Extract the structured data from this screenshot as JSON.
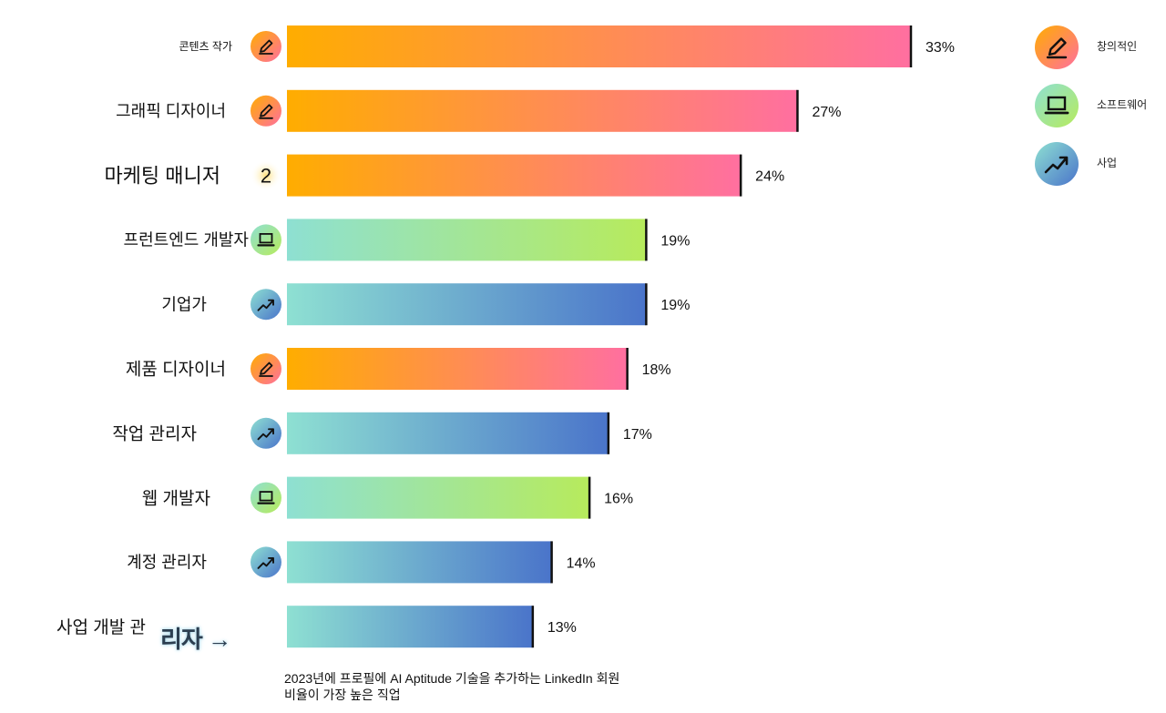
{
  "chart_data": {
    "type": "bar",
    "orientation": "horizontal",
    "title": "",
    "xlabel": "",
    "ylabel": "",
    "xlim": [
      0,
      33
    ],
    "categories": [
      "콘텐츠 작가",
      "그래픽 디자이너",
      "마케팅 매니저",
      "프런트엔드 개발자",
      "기업가",
      "제품 디자이너",
      "작업 관리자",
      "웹 개발자",
      "계정 관리자",
      "사업 개발 관"
    ],
    "values": [
      33,
      27,
      24,
      19,
      19,
      18,
      17,
      16,
      14,
      13
    ],
    "value_labels": [
      "33%",
      "27%",
      "24%",
      "19%",
      "19%",
      "18%",
      "17%",
      "16%",
      "14%",
      "13%"
    ],
    "groups": [
      "creative",
      "creative",
      "creative",
      "software",
      "business",
      "creative",
      "business",
      "software",
      "business",
      "business"
    ],
    "row_icons": [
      "pencil-icon",
      "pencil-icon",
      "number-2-icon",
      "laptop-icon",
      "trend-up-icon",
      "pencil-icon",
      "trend-up-icon",
      "laptop-icon",
      "trend-up-icon",
      "none"
    ],
    "row_icon_text": [
      "",
      "",
      "2",
      "",
      "",
      "",
      "",
      "",
      "",
      ""
    ],
    "legend_position": "top-right"
  },
  "legend": [
    {
      "key": "creative",
      "label": "창의적인",
      "icon": "pencil-icon"
    },
    {
      "key": "software",
      "label": "소프트웨어",
      "icon": "laptop-icon"
    },
    {
      "key": "business",
      "label": "사업",
      "icon": "trend-up-icon"
    }
  ],
  "colors": {
    "creative_start": "#FFAD00",
    "creative_end": "#FF6FA0",
    "software_start": "#8EE0D2",
    "software_end": "#B7EB5C",
    "business_start": "#8EE0D2",
    "business_end": "#4A74CA",
    "axis_tick": "#111111"
  },
  "stray_text": "리자 →",
  "footnote": {
    "line1": "2023년에 프로필에 AI Aptitude 기술을 추가하는 LinkedIn 회원",
    "line2": "비율이 가장 높은 직업"
  }
}
